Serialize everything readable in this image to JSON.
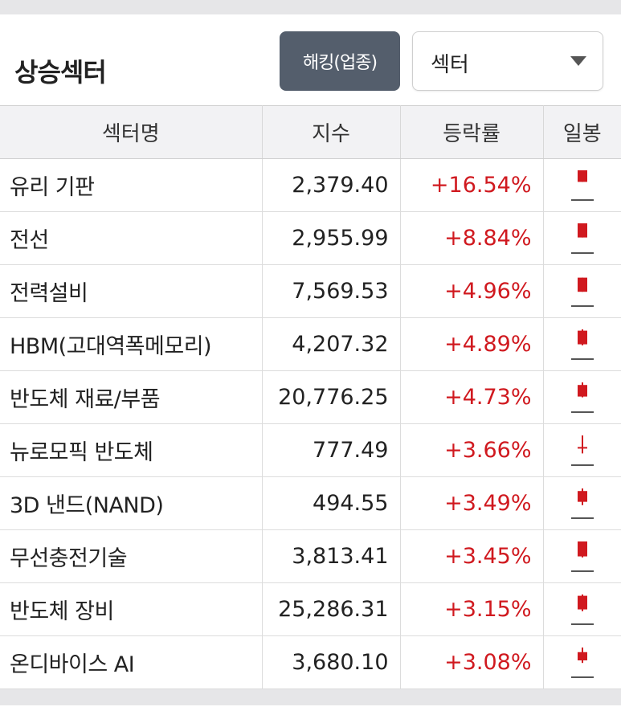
{
  "header": {
    "title": "상승섹터",
    "mode_button_label": "해킹(업종)",
    "category_select_value": "섹터"
  },
  "table": {
    "columns": [
      "섹터명",
      "지수",
      "등락률",
      "일봉"
    ],
    "rows": [
      {
        "name": "유리 기판",
        "index": "2,379.40",
        "change": "+16.54%",
        "candle": {
          "open": 0.55,
          "close": 1.0,
          "high": 1.0,
          "low": 0.55
        }
      },
      {
        "name": "전선",
        "index": "2,955.99",
        "change": "+8.84%",
        "candle": {
          "open": 0.45,
          "close": 1.0,
          "high": 1.0,
          "low": 0.45
        }
      },
      {
        "name": "전력설비",
        "index": "7,569.53",
        "change": "+4.96%",
        "candle": {
          "open": 0.4,
          "close": 0.95,
          "high": 0.95,
          "low": 0.4
        }
      },
      {
        "name": "HBM(고대역폭메모리)",
        "index": "4,207.32",
        "change": "+4.89%",
        "candle": {
          "open": 0.42,
          "close": 0.95,
          "high": 1.0,
          "low": 0.38
        }
      },
      {
        "name": "반도체 재료/부품",
        "index": "20,776.25",
        "change": "+4.73%",
        "candle": {
          "open": 0.45,
          "close": 0.9,
          "high": 1.0,
          "low": 0.42
        }
      },
      {
        "name": "뉴로모픽 반도체",
        "index": "777.49",
        "change": "+3.66%",
        "candle": {
          "open": 0.5,
          "close": 0.55,
          "high": 1.0,
          "low": 0.3
        }
      },
      {
        "name": "3D 낸드(NAND)",
        "index": "494.55",
        "change": "+3.49%",
        "candle": {
          "open": 0.48,
          "close": 0.9,
          "high": 1.0,
          "low": 0.35
        }
      },
      {
        "name": "무선충전기술",
        "index": "3,813.41",
        "change": "+3.45%",
        "candle": {
          "open": 0.42,
          "close": 1.0,
          "high": 1.0,
          "low": 0.38
        }
      },
      {
        "name": "반도체 장비",
        "index": "25,286.31",
        "change": "+3.15%",
        "candle": {
          "open": 0.42,
          "close": 0.95,
          "high": 1.0,
          "low": 0.35
        }
      },
      {
        "name": "온디바이스 AI",
        "index": "3,680.10",
        "change": "+3.08%",
        "candle": {
          "open": 0.5,
          "close": 0.82,
          "high": 1.0,
          "low": 0.4
        }
      }
    ]
  },
  "colors": {
    "up": "#d0191f",
    "candle_base": "#555555",
    "button_bg": "#545e6c"
  }
}
